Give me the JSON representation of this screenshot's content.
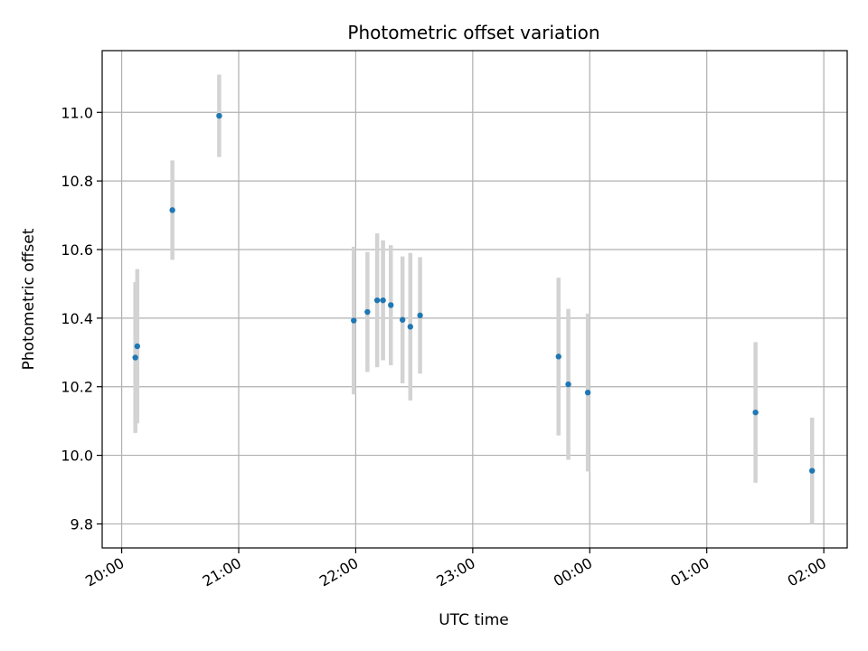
{
  "chart_data": {
    "type": "scatter",
    "title": "Photometric offset variation",
    "xlabel": "UTC time",
    "ylabel": "Photometric offset",
    "xlim": [
      "19:50",
      "02:12"
    ],
    "ylim": [
      9.73,
      11.18
    ],
    "x_ticks": [
      "20:00",
      "21:00",
      "22:00",
      "23:00",
      "00:00",
      "01:00",
      "02:00"
    ],
    "y_ticks": [
      9.8,
      10.0,
      10.2,
      10.4,
      10.6,
      10.8,
      11.0
    ],
    "y_tick_labels": [
      "9.8",
      "10.0",
      "10.2",
      "10.4",
      "10.6",
      "10.8",
      "11.0"
    ],
    "grid": true,
    "colors": {
      "marker": "#1f77b4",
      "errorbar": "#d3d3d3",
      "grid": "#b0b0b0"
    },
    "points": [
      {
        "x": "20:07",
        "y": 10.285,
        "err": 0.22
      },
      {
        "x": "20:08",
        "y": 10.318,
        "err": 0.225
      },
      {
        "x": "20:26",
        "y": 10.715,
        "err": 0.145
      },
      {
        "x": "20:50",
        "y": 10.99,
        "err": 0.12
      },
      {
        "x": "21:59",
        "y": 10.393,
        "err": 0.215
      },
      {
        "x": "22:06",
        "y": 10.418,
        "err": 0.175
      },
      {
        "x": "22:11",
        "y": 10.452,
        "err": 0.195
      },
      {
        "x": "22:14",
        "y": 10.452,
        "err": 0.175
      },
      {
        "x": "22:18",
        "y": 10.438,
        "err": 0.175
      },
      {
        "x": "22:24",
        "y": 10.395,
        "err": 0.185
      },
      {
        "x": "22:28",
        "y": 10.375,
        "err": 0.215
      },
      {
        "x": "22:33",
        "y": 10.408,
        "err": 0.17
      },
      {
        "x": "23:44",
        "y": 10.288,
        "err": 0.23
      },
      {
        "x": "23:49",
        "y": 10.207,
        "err": 0.22
      },
      {
        "x": "23:59",
        "y": 10.183,
        "err": 0.23
      },
      {
        "x": "01:25",
        "y": 10.125,
        "err": 0.205
      },
      {
        "x": "01:54",
        "y": 9.955,
        "err": 0.155
      }
    ]
  }
}
